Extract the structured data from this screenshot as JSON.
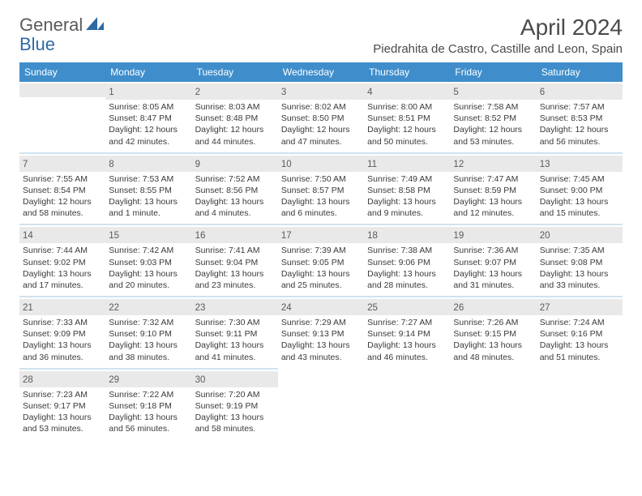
{
  "logo": {
    "general": "General",
    "blue": "Blue"
  },
  "title": "April 2024",
  "location": "Piedrahita de Castro, Castille and Leon, Spain",
  "dayHeaders": [
    "Sunday",
    "Monday",
    "Tuesday",
    "Wednesday",
    "Thursday",
    "Friday",
    "Saturday"
  ],
  "weeks": [
    [
      {
        "empty": true
      },
      {
        "num": "1",
        "sunrise": "Sunrise: 8:05 AM",
        "sunset": "Sunset: 8:47 PM",
        "dl1": "Daylight: 12 hours",
        "dl2": "and 42 minutes."
      },
      {
        "num": "2",
        "sunrise": "Sunrise: 8:03 AM",
        "sunset": "Sunset: 8:48 PM",
        "dl1": "Daylight: 12 hours",
        "dl2": "and 44 minutes."
      },
      {
        "num": "3",
        "sunrise": "Sunrise: 8:02 AM",
        "sunset": "Sunset: 8:50 PM",
        "dl1": "Daylight: 12 hours",
        "dl2": "and 47 minutes."
      },
      {
        "num": "4",
        "sunrise": "Sunrise: 8:00 AM",
        "sunset": "Sunset: 8:51 PM",
        "dl1": "Daylight: 12 hours",
        "dl2": "and 50 minutes."
      },
      {
        "num": "5",
        "sunrise": "Sunrise: 7:58 AM",
        "sunset": "Sunset: 8:52 PM",
        "dl1": "Daylight: 12 hours",
        "dl2": "and 53 minutes."
      },
      {
        "num": "6",
        "sunrise": "Sunrise: 7:57 AM",
        "sunset": "Sunset: 8:53 PM",
        "dl1": "Daylight: 12 hours",
        "dl2": "and 56 minutes."
      }
    ],
    [
      {
        "num": "7",
        "sunrise": "Sunrise: 7:55 AM",
        "sunset": "Sunset: 8:54 PM",
        "dl1": "Daylight: 12 hours",
        "dl2": "and 58 minutes."
      },
      {
        "num": "8",
        "sunrise": "Sunrise: 7:53 AM",
        "sunset": "Sunset: 8:55 PM",
        "dl1": "Daylight: 13 hours",
        "dl2": "and 1 minute."
      },
      {
        "num": "9",
        "sunrise": "Sunrise: 7:52 AM",
        "sunset": "Sunset: 8:56 PM",
        "dl1": "Daylight: 13 hours",
        "dl2": "and 4 minutes."
      },
      {
        "num": "10",
        "sunrise": "Sunrise: 7:50 AM",
        "sunset": "Sunset: 8:57 PM",
        "dl1": "Daylight: 13 hours",
        "dl2": "and 6 minutes."
      },
      {
        "num": "11",
        "sunrise": "Sunrise: 7:49 AM",
        "sunset": "Sunset: 8:58 PM",
        "dl1": "Daylight: 13 hours",
        "dl2": "and 9 minutes."
      },
      {
        "num": "12",
        "sunrise": "Sunrise: 7:47 AM",
        "sunset": "Sunset: 8:59 PM",
        "dl1": "Daylight: 13 hours",
        "dl2": "and 12 minutes."
      },
      {
        "num": "13",
        "sunrise": "Sunrise: 7:45 AM",
        "sunset": "Sunset: 9:00 PM",
        "dl1": "Daylight: 13 hours",
        "dl2": "and 15 minutes."
      }
    ],
    [
      {
        "num": "14",
        "sunrise": "Sunrise: 7:44 AM",
        "sunset": "Sunset: 9:02 PM",
        "dl1": "Daylight: 13 hours",
        "dl2": "and 17 minutes."
      },
      {
        "num": "15",
        "sunrise": "Sunrise: 7:42 AM",
        "sunset": "Sunset: 9:03 PM",
        "dl1": "Daylight: 13 hours",
        "dl2": "and 20 minutes."
      },
      {
        "num": "16",
        "sunrise": "Sunrise: 7:41 AM",
        "sunset": "Sunset: 9:04 PM",
        "dl1": "Daylight: 13 hours",
        "dl2": "and 23 minutes."
      },
      {
        "num": "17",
        "sunrise": "Sunrise: 7:39 AM",
        "sunset": "Sunset: 9:05 PM",
        "dl1": "Daylight: 13 hours",
        "dl2": "and 25 minutes."
      },
      {
        "num": "18",
        "sunrise": "Sunrise: 7:38 AM",
        "sunset": "Sunset: 9:06 PM",
        "dl1": "Daylight: 13 hours",
        "dl2": "and 28 minutes."
      },
      {
        "num": "19",
        "sunrise": "Sunrise: 7:36 AM",
        "sunset": "Sunset: 9:07 PM",
        "dl1": "Daylight: 13 hours",
        "dl2": "and 31 minutes."
      },
      {
        "num": "20",
        "sunrise": "Sunrise: 7:35 AM",
        "sunset": "Sunset: 9:08 PM",
        "dl1": "Daylight: 13 hours",
        "dl2": "and 33 minutes."
      }
    ],
    [
      {
        "num": "21",
        "sunrise": "Sunrise: 7:33 AM",
        "sunset": "Sunset: 9:09 PM",
        "dl1": "Daylight: 13 hours",
        "dl2": "and 36 minutes."
      },
      {
        "num": "22",
        "sunrise": "Sunrise: 7:32 AM",
        "sunset": "Sunset: 9:10 PM",
        "dl1": "Daylight: 13 hours",
        "dl2": "and 38 minutes."
      },
      {
        "num": "23",
        "sunrise": "Sunrise: 7:30 AM",
        "sunset": "Sunset: 9:11 PM",
        "dl1": "Daylight: 13 hours",
        "dl2": "and 41 minutes."
      },
      {
        "num": "24",
        "sunrise": "Sunrise: 7:29 AM",
        "sunset": "Sunset: 9:13 PM",
        "dl1": "Daylight: 13 hours",
        "dl2": "and 43 minutes."
      },
      {
        "num": "25",
        "sunrise": "Sunrise: 7:27 AM",
        "sunset": "Sunset: 9:14 PM",
        "dl1": "Daylight: 13 hours",
        "dl2": "and 46 minutes."
      },
      {
        "num": "26",
        "sunrise": "Sunrise: 7:26 AM",
        "sunset": "Sunset: 9:15 PM",
        "dl1": "Daylight: 13 hours",
        "dl2": "and 48 minutes."
      },
      {
        "num": "27",
        "sunrise": "Sunrise: 7:24 AM",
        "sunset": "Sunset: 9:16 PM",
        "dl1": "Daylight: 13 hours",
        "dl2": "and 51 minutes."
      }
    ],
    [
      {
        "num": "28",
        "sunrise": "Sunrise: 7:23 AM",
        "sunset": "Sunset: 9:17 PM",
        "dl1": "Daylight: 13 hours",
        "dl2": "and 53 minutes."
      },
      {
        "num": "29",
        "sunrise": "Sunrise: 7:22 AM",
        "sunset": "Sunset: 9:18 PM",
        "dl1": "Daylight: 13 hours",
        "dl2": "and 56 minutes."
      },
      {
        "num": "30",
        "sunrise": "Sunrise: 7:20 AM",
        "sunset": "Sunset: 9:19 PM",
        "dl1": "Daylight: 13 hours",
        "dl2": "and 58 minutes."
      },
      {
        "empty": true
      },
      {
        "empty": true
      },
      {
        "empty": true
      },
      {
        "empty": true
      }
    ]
  ],
  "colors": {
    "headerBg": "#3f8ecb",
    "headerText": "#ffffff",
    "dayNumBg": "#e9e9e9",
    "separator": "#d0e2ef",
    "bodyText": "#3a3a3a",
    "titleText": "#4a4a4a",
    "logoBlue": "#2d6aa3"
  }
}
